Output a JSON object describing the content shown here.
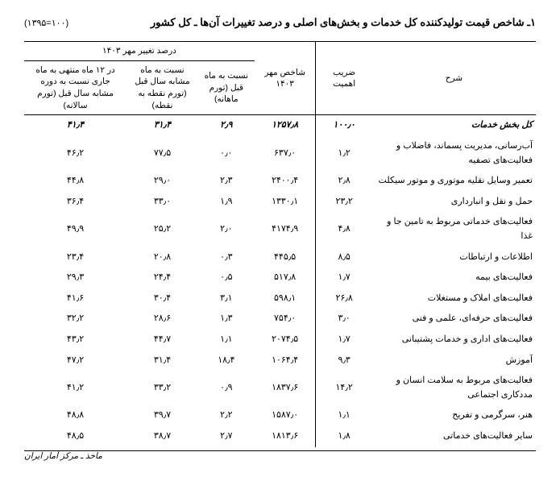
{
  "title": "۱ـ شاخص قیمت تولیدکننده کل خدمات و بخش‌های اصلی و درصد تغییرات آن‌ها ـ کل کشور",
  "base_year": "(۱۳۹۵=۱۰۰)",
  "header": {
    "desc": "شرح",
    "weight": "ضریب اهمیت",
    "index": "شاخص مهر ۱۴۰۳",
    "change_group": "درصد تغییر مهر ۱۴۰۳",
    "monthly": "نسبت به ماه قبل (تورم ماهانه)",
    "yearly": "نسبت به ماه مشابه سال قبل (تورم نقطه به نقطه)",
    "twelve": "در ۱۲ ماه منتهی به ماه جاری نسبت به دوره مشابه سال قبل (تورم سالانه)"
  },
  "rows": [
    {
      "bold": true,
      "desc": "کل بخش خدمات",
      "w": "۱۰۰٫۰",
      "i": "۱۲۵۷٫۸",
      "m": "۲٫۹",
      "y": "۳۱٫۴",
      "t": "۴۱٫۴"
    },
    {
      "desc": "آب‌رسانی، مدیریت پسماند، فاضلاب و فعالیت‌های تصفیه",
      "w": "۱٫۲",
      "i": "۶۳۷٫۰",
      "m": "۰٫۰",
      "y": "۷۷٫۵",
      "t": "۴۶٫۲"
    },
    {
      "desc": "تعمیر وسایل نقلیه موتوری و موتور سیکلت",
      "w": "۲٫۸",
      "i": "۲۴۰۰٫۴",
      "m": "۲٫۳",
      "y": "۲۹٫۰",
      "t": "۴۴٫۸"
    },
    {
      "desc": "حمل و نقل و انبارداری",
      "w": "۲۳٫۲",
      "i": "۱۳۳۰٫۱",
      "m": "۱٫۹",
      "y": "۳۳٫۰",
      "t": "۳۶٫۴"
    },
    {
      "desc": "فعالیت‌های خدماتی مربوط به تامین جا و غذا",
      "w": "۴٫۸",
      "i": "۴۱۷۴٫۹",
      "m": "۲٫۰",
      "y": "۲۵٫۲",
      "t": "۴۹٫۹"
    },
    {
      "desc": "اطلاعات و ارتباطات",
      "w": "۸٫۵",
      "i": "۴۴۵٫۵",
      "m": "۰٫۳",
      "y": "۲۰٫۸",
      "t": "۲۳٫۴"
    },
    {
      "desc": "فعالیت‌های بیمه",
      "w": "۱٫۷",
      "i": "۵۱۷٫۸",
      "m": "۰٫۵",
      "y": "۲۴٫۴",
      "t": "۲۹٫۳"
    },
    {
      "desc": "فعالیت‌های املاک و مستغلات",
      "w": "۲۶٫۸",
      "i": "۵۹۸٫۱",
      "m": "۳٫۱",
      "y": "۳۰٫۴",
      "t": "۴۱٫۶"
    },
    {
      "desc": "فعالیت‌های حرفه‌ای، علمی و فنی",
      "w": "۳٫۰",
      "i": "۷۵۴٫۰",
      "m": "۱٫۳",
      "y": "۲۸٫۶",
      "t": "۳۲٫۲"
    },
    {
      "desc": "فعالیت‌های اداری و خدمات پشتیبانی",
      "w": "۱٫۷",
      "i": "۲۰۷۴٫۵",
      "m": "۱٫۱",
      "y": "۴۴٫۷",
      "t": "۴۳٫۲"
    },
    {
      "desc": "آموزش",
      "w": "۹٫۳",
      "i": "۱۰۶۴٫۴",
      "m": "۱۸٫۴",
      "y": "۳۱٫۴",
      "t": "۴۷٫۲"
    },
    {
      "desc": "فعالیت‌های مربوط به سلامت انسان و مددکاری اجتماعی",
      "w": "۱۴٫۲",
      "i": "۱۸۳۷٫۶",
      "m": "۰٫۹",
      "y": "۳۳٫۲",
      "t": "۴۱٫۲"
    },
    {
      "desc": "هنر، سرگرمی و تفریح",
      "w": "۱٫۱",
      "i": "۱۵۸۷٫۰",
      "m": "۲٫۲",
      "y": "۳۹٫۷",
      "t": "۴۸٫۸"
    },
    {
      "desc": "سایر فعالیت‌های خدماتی",
      "w": "۱٫۸",
      "i": "۱۸۱۳٫۶",
      "m": "۲٫۷",
      "y": "۳۸٫۷",
      "t": "۴۸٫۵"
    }
  ],
  "source": "ماخذ ـ مرکز آمار ایران"
}
